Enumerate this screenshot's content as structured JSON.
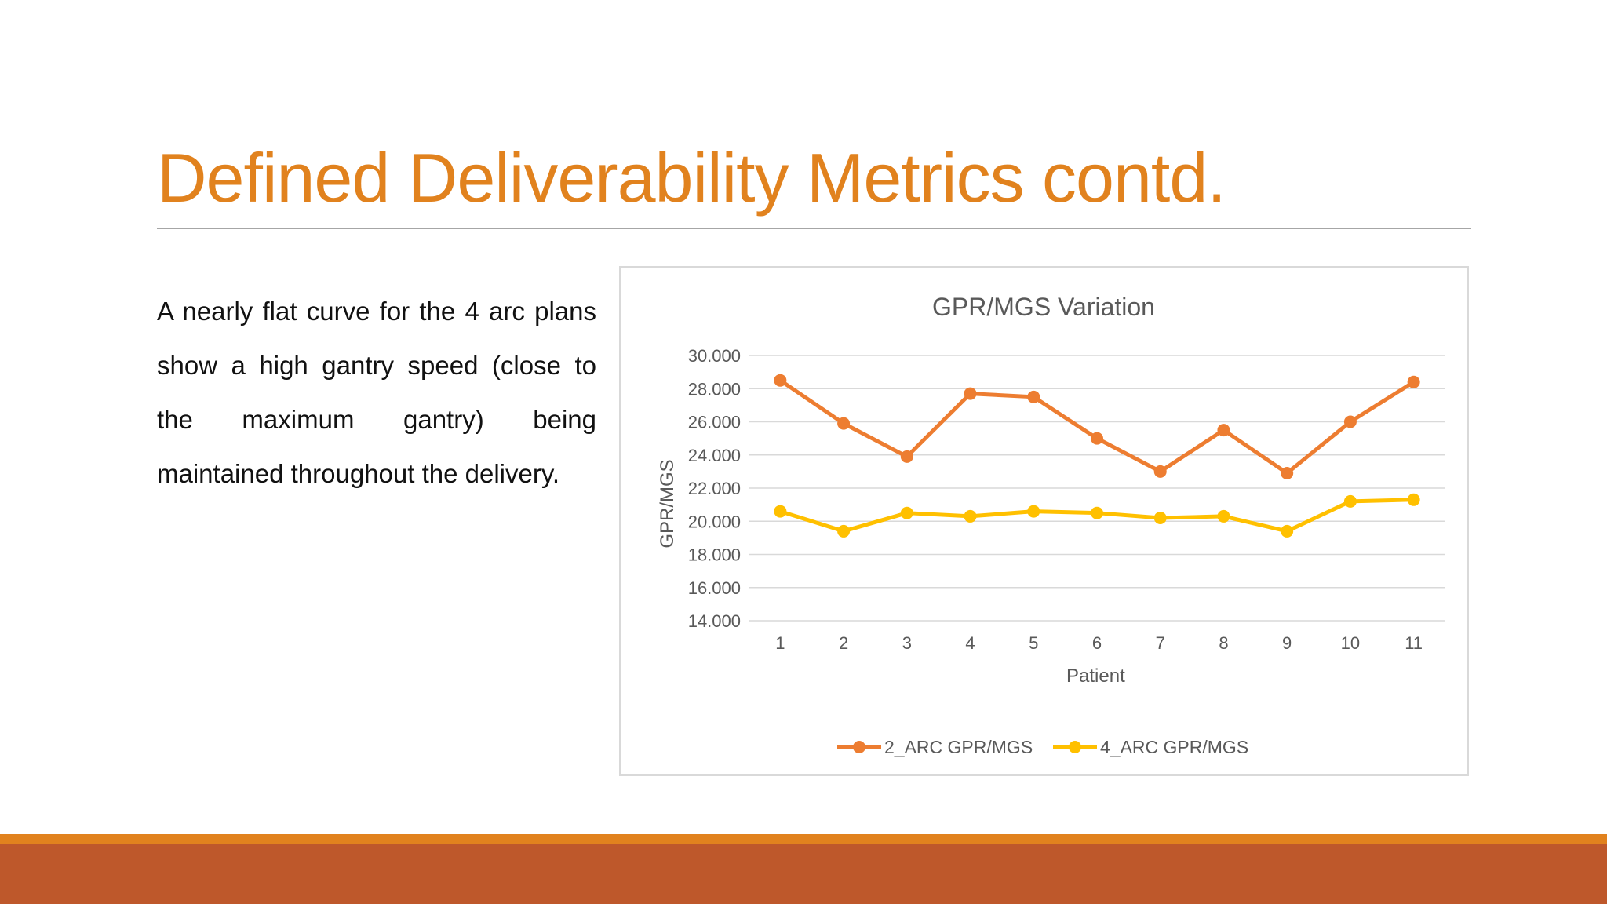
{
  "slide": {
    "title": "Defined Deliverability Metrics contd.",
    "body": "A nearly flat curve for the 4 arc plans show a high gantry speed (close to the maximum gantry) being maintained throughout the delivery."
  },
  "colors": {
    "title": "#E1821E",
    "rule": "#A6A6A6",
    "stripe": "#E1821E",
    "band": "#BE582B",
    "series_2arc": "#ED7D31",
    "series_4arc": "#FFC000",
    "gridline": "#D9D9D9",
    "axis_text": "#595959"
  },
  "chart_data": {
    "type": "line",
    "title": "GPR/MGS Variation",
    "xlabel": "Patient",
    "ylabel": "GPR/MGS",
    "categories": [
      "1",
      "2",
      "3",
      "4",
      "5",
      "6",
      "7",
      "8",
      "9",
      "10",
      "11"
    ],
    "ylim": [
      14,
      30
    ],
    "ytick_step": 2,
    "ytick_labels": [
      "14.000",
      "16.000",
      "18.000",
      "20.000",
      "22.000",
      "24.000",
      "26.000",
      "28.000",
      "30.000"
    ],
    "grid": true,
    "legend_position": "bottom",
    "series": [
      {
        "name": "2_ARC GPR/MGS",
        "color": "#ED7D31",
        "values": [
          28.5,
          25.9,
          23.9,
          27.7,
          27.5,
          25.0,
          23.0,
          25.5,
          22.9,
          26.0,
          28.4
        ]
      },
      {
        "name": "4_ARC GPR/MGS",
        "color": "#FFC000",
        "values": [
          20.6,
          19.4,
          20.5,
          20.3,
          20.6,
          20.5,
          20.2,
          20.3,
          19.4,
          21.2,
          21.3
        ]
      }
    ]
  }
}
